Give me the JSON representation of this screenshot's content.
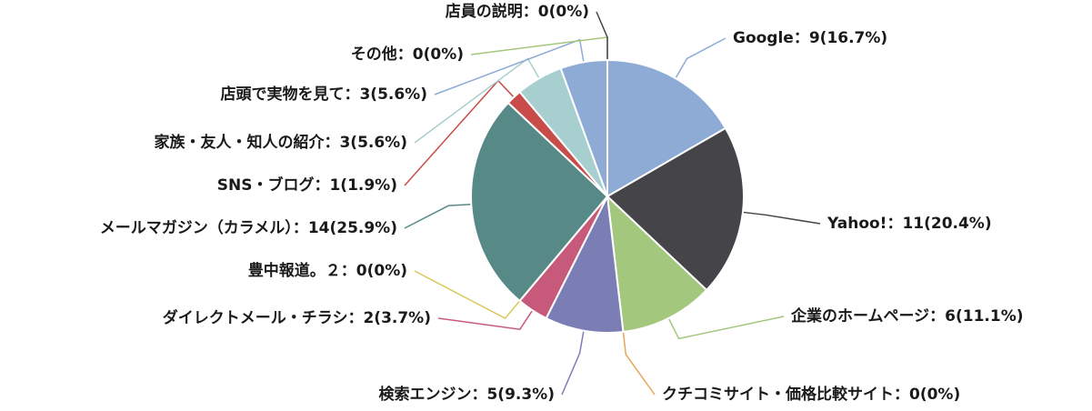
{
  "chart_data": {
    "type": "pie",
    "categories": [
      "Google",
      "Yahoo!",
      "企業のホームページ",
      "クチコミサイト・価格比較サイト",
      "検索エンジン",
      "ダイレクトメール・チラシ",
      "豊中報道。２",
      "メールマガジン（カラメル）",
      "SNS・ブログ",
      "家族・友人・知人の紹介",
      "店頭で実物を見て",
      "その他",
      "店員の説明"
    ],
    "values": [
      9,
      11,
      6,
      0,
      5,
      2,
      0,
      14,
      1,
      3,
      3,
      0,
      0
    ],
    "value_labels": [
      "9(16.7%)",
      "11(20.4%)",
      "6(11.1%)",
      "0(0%)",
      "5(9.3%)",
      "2(3.7%)",
      "0(0%)",
      "14(25.9%)",
      "1(1.9%)",
      "3(5.6%)",
      "3(5.6%)",
      "0(0%)",
      "0(0%)"
    ],
    "label_separator": "：",
    "colors": [
      "#8eabd6",
      "#454449",
      "#a4c77e",
      "#e8a45c",
      "#7b7db5",
      "#c75a7a",
      "#d9c85a",
      "#578a87",
      "#c84c4a",
      "#a8cfcf",
      "#8eabd6",
      "#a4c77e",
      "#454449"
    ]
  }
}
